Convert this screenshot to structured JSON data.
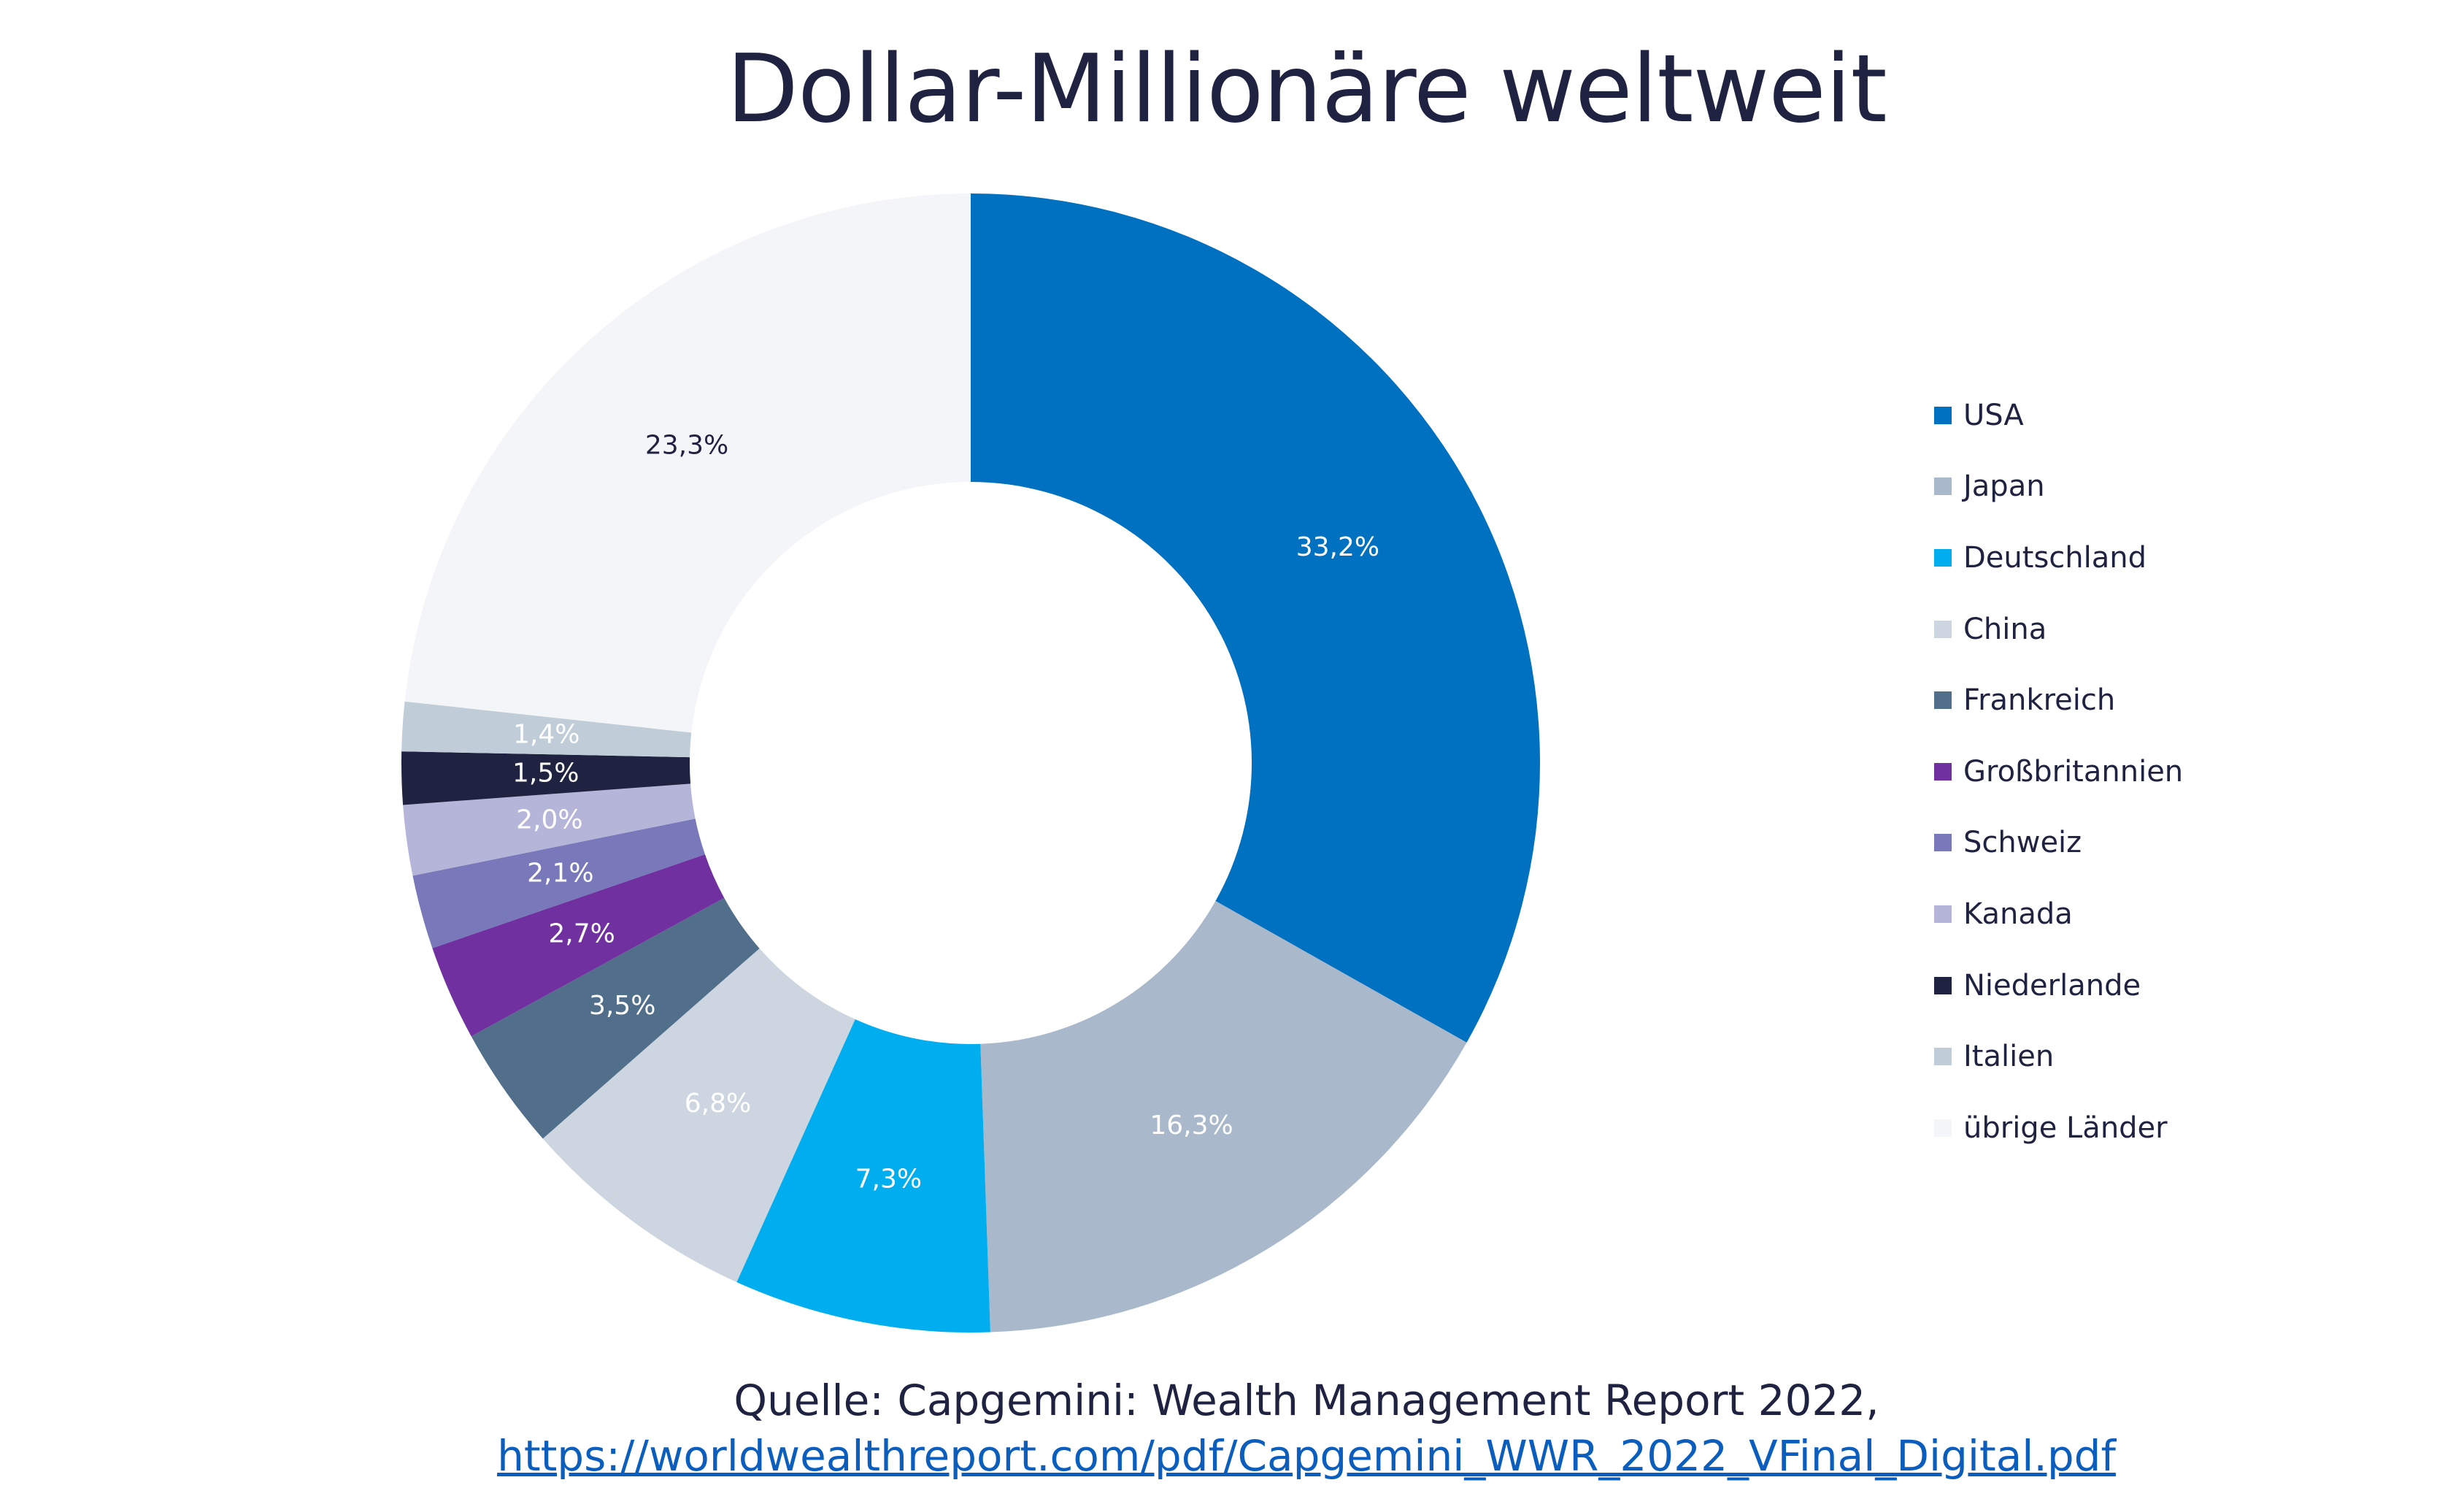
{
  "chart_data": {
    "type": "pie",
    "title": "Dollar-Millionäre weltweit",
    "donut": true,
    "legend_position": "right",
    "series": [
      {
        "name": "USA",
        "value": 33.2,
        "label": "33,2%",
        "color": "#0070c0",
        "label_color": "#ffffff"
      },
      {
        "name": "Japan",
        "value": 16.3,
        "label": "16,3%",
        "color": "#a9b8cb",
        "label_color": "#ffffff"
      },
      {
        "name": "Deutschland",
        "value": 7.3,
        "label": "7,3%",
        "color": "#00aeef",
        "label_color": "#ffffff"
      },
      {
        "name": "China",
        "value": 6.8,
        "label": "6,8%",
        "color": "#ccd5e0",
        "label_color": "#ffffff"
      },
      {
        "name": "Frankreich",
        "value": 3.5,
        "label": "3,5%",
        "color": "#516e8a",
        "label_color": "#ffffff"
      },
      {
        "name": "Großbritannien",
        "value": 2.7,
        "label": "2,7%",
        "color": "#7030a0",
        "label_color": "#ffffff"
      },
      {
        "name": "Schweiz",
        "value": 2.1,
        "label": "2,1%",
        "color": "#7878ba",
        "label_color": "#ffffff"
      },
      {
        "name": "Kanada",
        "value": 2.0,
        "label": "2,0%",
        "color": "#b5b5da",
        "label_color": "#ffffff"
      },
      {
        "name": "Niederlande",
        "value": 1.5,
        "label": "1,5%",
        "color": "#1f2240",
        "label_color": "#ffffff"
      },
      {
        "name": "Italien",
        "value": 1.4,
        "label": "1,4%",
        "color": "#c0ccd8",
        "label_color": "#ffffff"
      },
      {
        "name": "übrige Länder",
        "value": 23.3,
        "label": "23,3%",
        "color": "#f4f5f8",
        "label_color": "#1f2240"
      }
    ]
  },
  "source": {
    "text": "Quelle: Capgemini: Wealth Management Report 2022,",
    "url": "https://worldwealthreport.com/pdf/Capgemini_WWR_2022_VFinal_Digital.pdf"
  }
}
